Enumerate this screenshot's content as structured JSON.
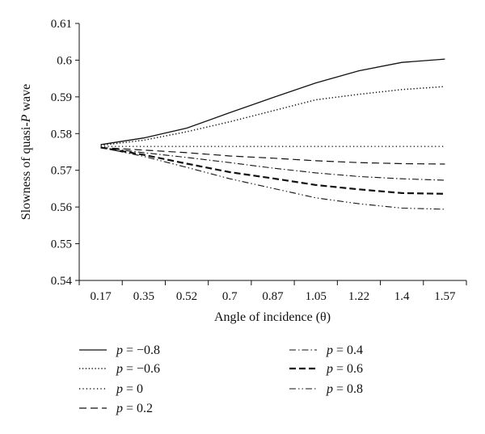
{
  "chart_data": {
    "type": "line",
    "title": "",
    "xlabel": "Angle of incidence (θ)",
    "ylabel": "Slowness of quasi-P wave",
    "categories": [
      "0.17",
      "0.35",
      "0.52",
      "0.7",
      "0.87",
      "1.05",
      "1.22",
      "1.4",
      "1.57"
    ],
    "x": [
      0.17,
      0.35,
      0.52,
      0.7,
      0.87,
      1.05,
      1.22,
      1.4,
      1.57
    ],
    "ylim": [
      0.54,
      0.61
    ],
    "yticks": [
      "0.54",
      "0.55",
      "0.56",
      "0.57",
      "0.58",
      "0.59",
      "0.6",
      "0.61"
    ],
    "grid": false,
    "legend_position": "below",
    "series": [
      {
        "name": "p = −0.8",
        "p_value": "−0.8",
        "style": "solid",
        "values": [
          0.577,
          0.5788,
          0.5815,
          0.5857,
          0.5898,
          0.5938,
          0.5971,
          0.5994,
          0.6003
        ]
      },
      {
        "name": "p = −0.6",
        "p_value": "−0.6",
        "style": "dotted",
        "values": [
          0.5768,
          0.5782,
          0.5805,
          0.5832,
          0.5862,
          0.5892,
          0.5907,
          0.592,
          0.5928
        ]
      },
      {
        "name": "p = 0",
        "p_value": "0",
        "style": "dotted-sparse",
        "values": [
          0.5765,
          0.5765,
          0.5765,
          0.5765,
          0.5765,
          0.5765,
          0.5765,
          0.5765,
          0.5765
        ]
      },
      {
        "name": "p = 0.2",
        "p_value": "0.2",
        "style": "dashed",
        "values": [
          0.5762,
          0.5755,
          0.5748,
          0.5739,
          0.5733,
          0.5726,
          0.5721,
          0.5718,
          0.5717
        ]
      },
      {
        "name": "p = 0.4",
        "p_value": "0.4",
        "style": "dash-dot",
        "values": [
          0.5762,
          0.5748,
          0.5735,
          0.5721,
          0.5706,
          0.5693,
          0.5683,
          0.5677,
          0.5673
        ]
      },
      {
        "name": "p = 0.6",
        "p_value": "0.6",
        "style": "dashed-bold",
        "values": [
          0.5762,
          0.5742,
          0.5718,
          0.5695,
          0.5678,
          0.566,
          0.5648,
          0.5638,
          0.5636
        ]
      },
      {
        "name": "p = 0.8",
        "p_value": "0.8",
        "style": "dash-dot-dot",
        "values": [
          0.5762,
          0.5738,
          0.5708,
          0.5677,
          0.5651,
          0.5625,
          0.5609,
          0.5597,
          0.5594
        ]
      }
    ]
  }
}
